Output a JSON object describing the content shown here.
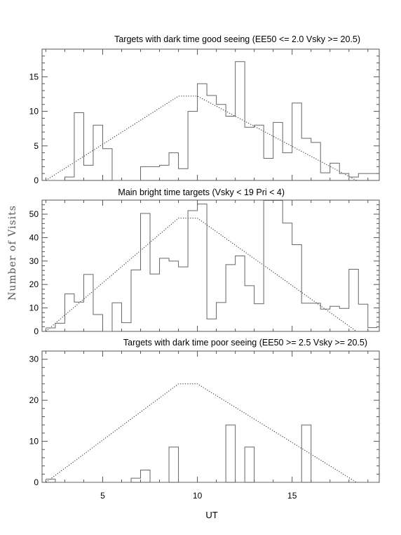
{
  "figure": {
    "ylabel": "Number of Visits",
    "xlabel": "UT"
  },
  "chart_data": [
    {
      "type": "line",
      "title": "Targets with dark time good seeing (EE50 <= 2.0 Vsky >= 20.5)",
      "xlabel": "UT",
      "ylabel": "Number of Visits",
      "xlim": [
        1.8,
        19.6
      ],
      "ylim": [
        0,
        19
      ],
      "xticks": [
        5,
        10,
        15
      ],
      "yticks": [
        0,
        5,
        10,
        15
      ],
      "histogram": {
        "bin_edges": [
          2.0,
          2.5,
          3.0,
          3.5,
          4.0,
          4.5,
          5.0,
          5.5,
          6.0,
          6.5,
          7.0,
          7.5,
          8.0,
          8.5,
          9.0,
          9.5,
          10.0,
          10.5,
          11.0,
          11.5,
          12.0,
          12.5,
          13.0,
          13.5,
          14.0,
          14.5,
          15.0,
          15.5,
          16.0,
          16.5,
          17.0,
          17.5,
          18.0,
          18.5,
          19.0,
          19.5
        ],
        "counts": [
          0,
          0,
          0.5,
          9.8,
          2.2,
          8,
          4.6,
          0,
          0,
          0,
          2,
          2,
          2.2,
          4,
          1.7,
          10,
          14,
          12.3,
          11,
          9.3,
          17.2,
          7.7,
          8,
          3.2,
          8.4,
          4,
          11.2,
          6.1,
          5.5,
          1.1,
          2.5,
          1,
          0.5,
          1,
          1
        ]
      },
      "model": {
        "x": [
          2.0,
          9.0,
          10.0,
          18.4
        ],
        "y": [
          0,
          12.2,
          12.2,
          0
        ]
      }
    },
    {
      "type": "line",
      "title": "Main bright time targets (Vsky < 19 Pri < 4)",
      "xlabel": "UT",
      "ylabel": "Number of Visits",
      "xlim": [
        1.8,
        19.6
      ],
      "ylim": [
        0,
        56
      ],
      "xticks": [
        5,
        10,
        15
      ],
      "yticks": [
        0,
        10,
        20,
        30,
        40,
        50
      ],
      "histogram": {
        "bin_edges": [
          2.0,
          2.5,
          3.0,
          3.5,
          4.0,
          4.5,
          5.0,
          5.5,
          6.0,
          6.5,
          7.0,
          7.5,
          8.0,
          8.5,
          9.0,
          9.5,
          10.0,
          10.5,
          11.0,
          11.5,
          12.0,
          12.5,
          13.0,
          13.5,
          14.0,
          14.5,
          15.0,
          15.5,
          16.0,
          16.5,
          17.0,
          17.5,
          18.0,
          18.5,
          19.0,
          19.5
        ],
        "counts": [
          1.5,
          3.5,
          16,
          12.5,
          24.3,
          7.2,
          0,
          12.2,
          3.7,
          26.2,
          50.3,
          24.5,
          31.2,
          30,
          27.5,
          51.5,
          54.3,
          5.3,
          12.3,
          28.5,
          32.2,
          19.5,
          11.8,
          56,
          56,
          46.2,
          37,
          12,
          12,
          9.5,
          10.7,
          9.8,
          26.5,
          11.6,
          1.6
        ]
      },
      "model": {
        "x": [
          2.0,
          9.0,
          10.0,
          18.4
        ],
        "y": [
          0,
          48.3,
          48.3,
          0
        ]
      }
    },
    {
      "type": "line",
      "title": "Targets with dark time poor seeing (EE50 >= 2.5 Vsky >= 20.5)",
      "xlabel": "UT",
      "ylabel": "Number of Visits",
      "xlim": [
        1.8,
        19.6
      ],
      "ylim": [
        0,
        32
      ],
      "xticks": [
        5,
        10,
        15
      ],
      "yticks": [
        0,
        10,
        20,
        30
      ],
      "histogram": {
        "bin_edges": [
          2.0,
          2.5,
          3.0,
          3.5,
          4.0,
          4.5,
          5.0,
          5.5,
          6.0,
          6.5,
          7.0,
          7.5,
          8.0,
          8.5,
          9.0,
          9.5,
          10.0,
          10.5,
          11.0,
          11.5,
          12.0,
          12.5,
          13.0,
          13.5,
          14.0,
          14.5,
          15.0,
          15.5,
          16.0,
          16.5,
          17.0,
          17.5,
          18.0,
          18.5,
          19.0,
          19.5
        ],
        "counts": [
          0.8,
          0,
          0,
          0,
          0,
          0,
          0,
          0,
          0,
          1,
          3,
          0,
          0,
          8.6,
          0,
          0,
          0,
          0,
          0,
          14,
          0,
          8.6,
          0,
          0,
          0,
          0,
          0,
          14,
          0,
          0,
          0,
          0,
          0,
          0,
          0
        ]
      },
      "model": {
        "x": [
          2.0,
          9.0,
          10.0,
          18.4
        ],
        "y": [
          0,
          24,
          24,
          0
        ]
      }
    }
  ]
}
